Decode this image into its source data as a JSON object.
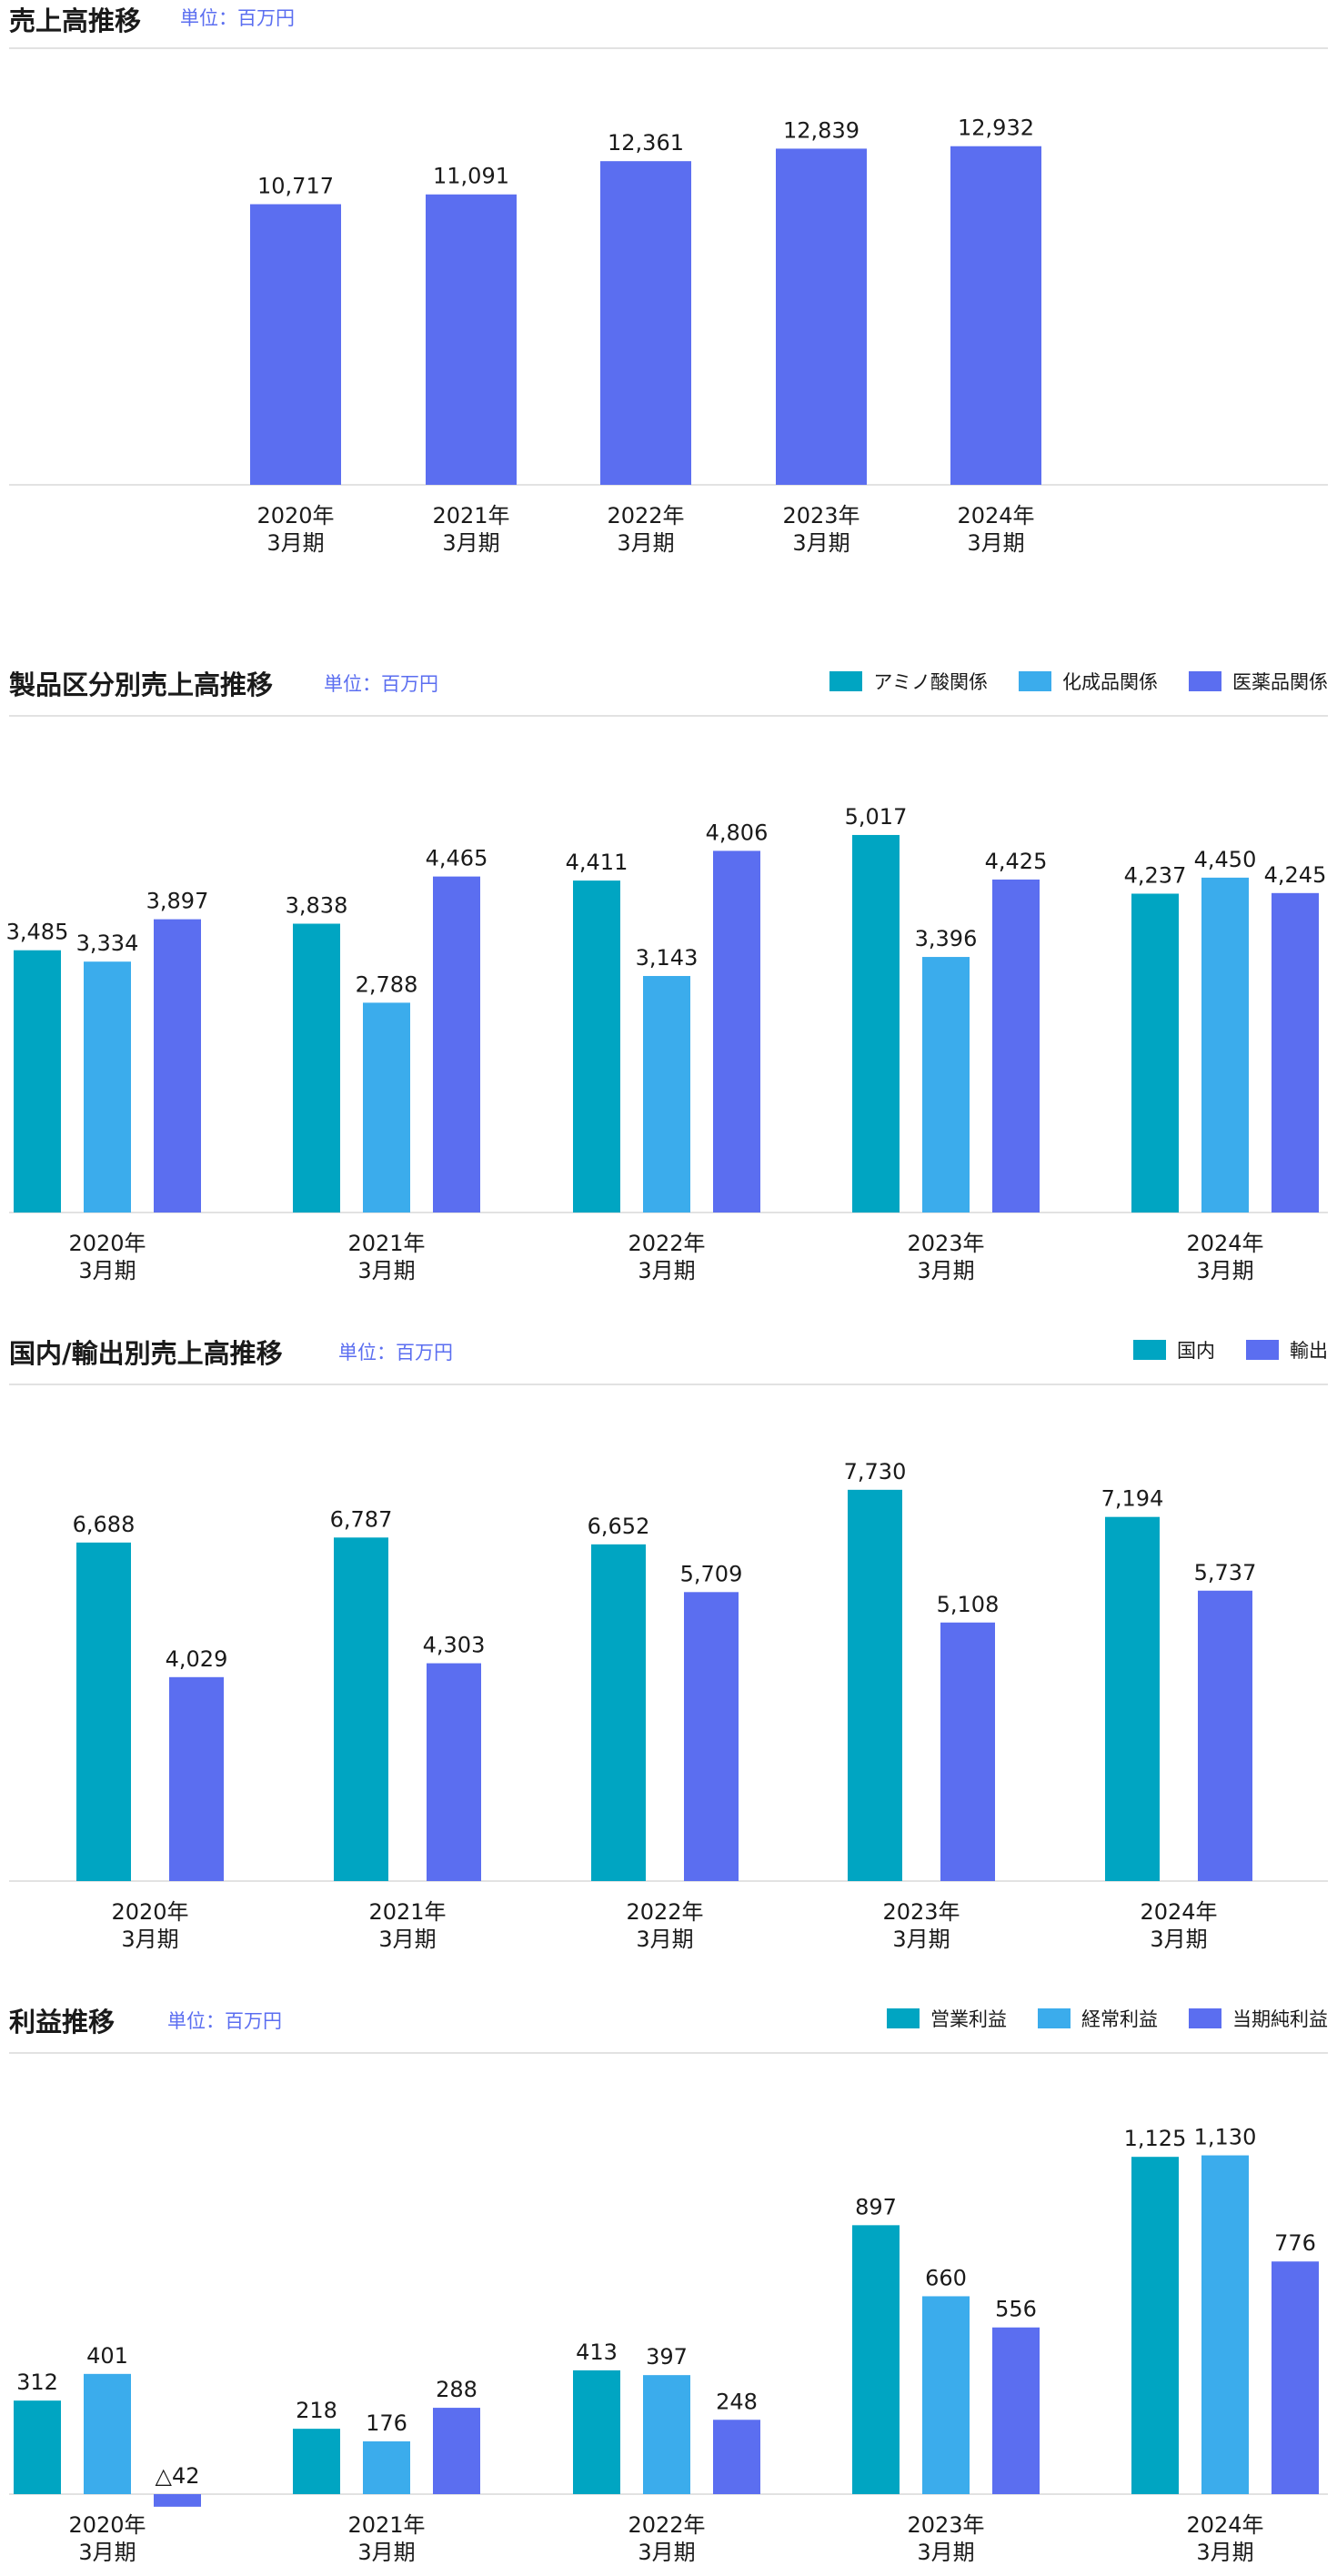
{
  "colors": {
    "teal": "#00a5c2",
    "sky": "#3bacec",
    "indigo": "#5b6ef0",
    "unit": "#5b6ef0",
    "axis": "#e2e2e2"
  },
  "chart_data": [
    {
      "type": "bar",
      "title": "売上高推移",
      "unit": "単位：百万円",
      "categories": [
        [
          "2020年",
          "3月期"
        ],
        [
          "2021年",
          "3月期"
        ],
        [
          "2022年",
          "3月期"
        ],
        [
          "2023年",
          "3月期"
        ],
        [
          "2024年",
          "3月期"
        ]
      ],
      "series": [
        {
          "color": "#5b6ef0",
          "values": [
            10717,
            11091,
            12361,
            12839,
            12932
          ],
          "labels": [
            "10,717",
            "11,091",
            "12,361",
            "12,839",
            "12,932"
          ]
        }
      ],
      "ylim": [
        0,
        14000
      ],
      "grid": false
    },
    {
      "type": "bar",
      "title": "製品区分別売上高推移",
      "unit": "単位：百万円",
      "categories": [
        [
          "2020年",
          "3月期"
        ],
        [
          "2021年",
          "3月期"
        ],
        [
          "2022年",
          "3月期"
        ],
        [
          "2023年",
          "3月期"
        ],
        [
          "2024年",
          "3月期"
        ]
      ],
      "series": [
        {
          "name": "アミノ酸関係",
          "color": "#00a5c2",
          "values": [
            3485,
            3838,
            4411,
            5017,
            4237
          ],
          "labels": [
            "3,485",
            "3,838",
            "4,411",
            "5,017",
            "4,237"
          ]
        },
        {
          "name": "化成品関係",
          "color": "#3bacec",
          "values": [
            3334,
            2788,
            3143,
            3396,
            4450
          ],
          "labels": [
            "3,334",
            "2,788",
            "3,143",
            "3,396",
            "4,450"
          ]
        },
        {
          "name": "医薬品関係",
          "color": "#5b6ef0",
          "values": [
            3897,
            4465,
            4806,
            4425,
            4245
          ],
          "labels": [
            "3,897",
            "4,465",
            "4,806",
            "4,425",
            "4,245"
          ]
        }
      ],
      "ylim": [
        0,
        5500
      ],
      "legend": "top-right",
      "grid": false
    },
    {
      "type": "bar",
      "title": "国内/輸出別売上高推移",
      "unit": "単位：百万円",
      "categories": [
        [
          "2020年",
          "3月期"
        ],
        [
          "2021年",
          "3月期"
        ],
        [
          "2022年",
          "3月期"
        ],
        [
          "2023年",
          "3月期"
        ],
        [
          "2024年",
          "3月期"
        ]
      ],
      "series": [
        {
          "name": "国内",
          "color": "#00a5c2",
          "values": [
            6688,
            6787,
            6652,
            7730,
            7194
          ],
          "labels": [
            "6,688",
            "6,787",
            "6,652",
            "7,730",
            "7,194"
          ]
        },
        {
          "name": "輸出",
          "color": "#5b6ef0",
          "values": [
            4029,
            4303,
            5709,
            5108,
            5737
          ],
          "labels": [
            "4,029",
            "4,303",
            "5,709",
            "5,108",
            "5,737"
          ]
        }
      ],
      "ylim": [
        0,
        8500
      ],
      "legend": "top-right",
      "grid": false
    },
    {
      "type": "bar",
      "title": "利益推移",
      "unit": "単位：百万円",
      "categories": [
        [
          "2020年",
          "3月期"
        ],
        [
          "2021年",
          "3月期"
        ],
        [
          "2022年",
          "3月期"
        ],
        [
          "2023年",
          "3月期"
        ],
        [
          "2024年",
          "3月期"
        ]
      ],
      "series": [
        {
          "name": "営業利益",
          "color": "#00a5c2",
          "values": [
            312,
            218,
            413,
            897,
            1125
          ],
          "labels": [
            "312",
            "218",
            "413",
            "897",
            "1,125"
          ]
        },
        {
          "name": "経常利益",
          "color": "#3bacec",
          "values": [
            401,
            176,
            397,
            660,
            1130
          ],
          "labels": [
            "401",
            "176",
            "397",
            "660",
            "1,130"
          ]
        },
        {
          "name": "当期純利益",
          "color": "#5b6ef0",
          "values": [
            -42,
            288,
            248,
            556,
            776
          ],
          "labels": [
            "△42",
            "288",
            "248",
            "556",
            "776"
          ]
        }
      ],
      "ylim": [
        -100,
        1250
      ],
      "legend": "top-right",
      "grid": false
    }
  ]
}
